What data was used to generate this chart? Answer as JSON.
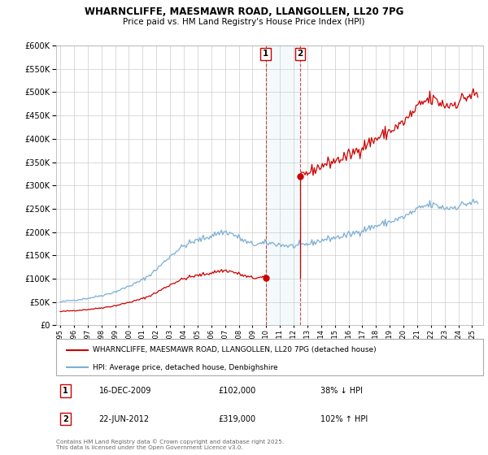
{
  "title1": "WHARNCLIFFE, MAESMAWR ROAD, LLANGOLLEN, LL20 7PG",
  "title2": "Price paid vs. HM Land Registry's House Price Index (HPI)",
  "ytick_values": [
    0,
    50000,
    100000,
    150000,
    200000,
    250000,
    300000,
    350000,
    400000,
    450000,
    500000,
    550000,
    600000
  ],
  "hpi_color": "#7bafd4",
  "price_color": "#cc0000",
  "transaction1": {
    "label": "1",
    "date": "16-DEC-2009",
    "price": 102000,
    "hpi_pct": "38% ↓ HPI",
    "x": 2009.958
  },
  "transaction2": {
    "label": "2",
    "date": "22-JUN-2012",
    "price": 319000,
    "hpi_pct": "102% ↑ HPI",
    "x": 2012.472
  },
  "legend_house": "WHARNCLIFFE, MAESMAWR ROAD, LLANGOLLEN, LL20 7PG (detached house)",
  "legend_hpi": "HPI: Average price, detached house, Denbighshire",
  "footer": "Contains HM Land Registry data © Crown copyright and database right 2025.\nThis data is licensed under the Open Government Licence v3.0.",
  "background_color": "#ffffff",
  "grid_color": "#cccccc",
  "xmin": 1994.7,
  "xmax": 2025.8,
  "ymin": 0,
  "ymax": 600000
}
